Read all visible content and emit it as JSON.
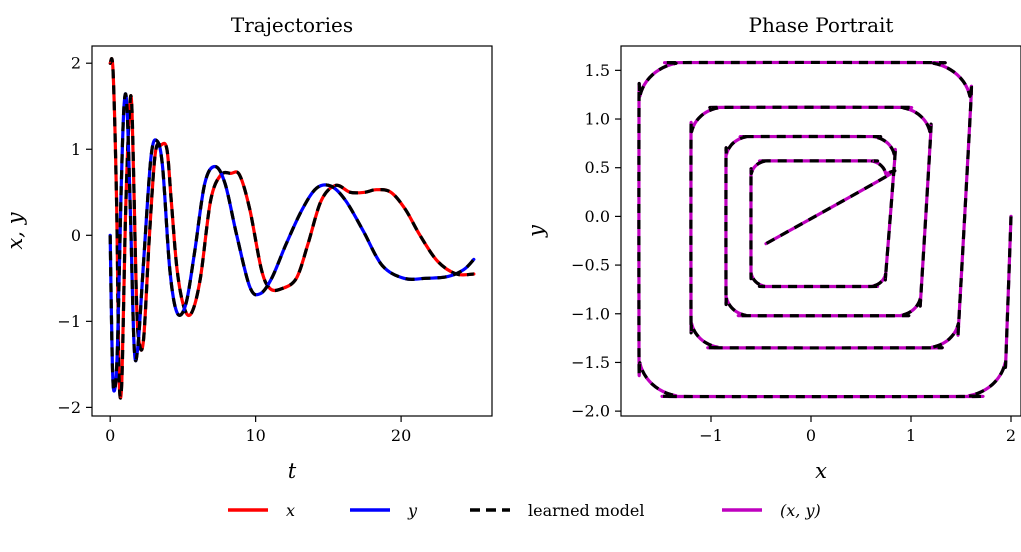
{
  "chart_data": [
    {
      "type": "line",
      "title": "Trajectories",
      "xlabel": "t",
      "ylabel": "x, y",
      "xlim": [
        -1.25,
        26.25
      ],
      "ylim": [
        -2.1,
        2.2
      ],
      "xticks": [
        0,
        10,
        20
      ],
      "yticks": [
        -2,
        -1,
        0,
        1,
        2
      ],
      "xtick_labels": [
        "0",
        "10",
        "20"
      ],
      "ytick_labels": [
        "−2",
        "−1",
        "0",
        "1",
        "2"
      ],
      "grid": false,
      "series": [
        {
          "name": "x",
          "color": "#ff0000",
          "points": [
            [
              0,
              2.0
            ],
            [
              0.2,
              1.9
            ],
            [
              0.45,
              0.3
            ],
            [
              0.6,
              -1.6
            ],
            [
              0.8,
              -1.7
            ],
            [
              1.05,
              0.2
            ],
            [
              1.3,
              1.35
            ],
            [
              1.5,
              1.45
            ],
            [
              1.8,
              -0.7
            ],
            [
              2.0,
              -1.25
            ],
            [
              2.3,
              -1.2
            ],
            [
              2.7,
              0.0
            ],
            [
              3.1,
              0.95
            ],
            [
              3.5,
              1.05
            ],
            [
              3.9,
              1.0
            ],
            [
              4.2,
              0.4
            ],
            [
              4.6,
              -0.4
            ],
            [
              5.1,
              -0.85
            ],
            [
              5.6,
              -0.9
            ],
            [
              6.2,
              -0.5
            ],
            [
              6.9,
              0.4
            ],
            [
              7.6,
              0.7
            ],
            [
              8.3,
              0.72
            ],
            [
              8.9,
              0.7
            ],
            [
              9.6,
              0.3
            ],
            [
              10.4,
              -0.4
            ],
            [
              11.0,
              -0.62
            ],
            [
              11.8,
              -0.62
            ],
            [
              12.8,
              -0.5
            ],
            [
              13.6,
              -0.1
            ],
            [
              14.5,
              0.4
            ],
            [
              15.5,
              0.58
            ],
            [
              16.5,
              0.5
            ],
            [
              17.5,
              0.5
            ],
            [
              18.3,
              0.53
            ],
            [
              19.3,
              0.5
            ],
            [
              20.3,
              0.3
            ],
            [
              21.3,
              0.0
            ],
            [
              22.5,
              -0.3
            ],
            [
              23.8,
              -0.45
            ],
            [
              25.0,
              -0.45
            ]
          ]
        },
        {
          "name": "y",
          "color": "#0000ff",
          "points": [
            [
              0,
              0.0
            ],
            [
              0.15,
              -1.5
            ],
            [
              0.3,
              -1.8
            ],
            [
              0.5,
              -1.3
            ],
            [
              0.75,
              0.5
            ],
            [
              0.95,
              1.5
            ],
            [
              1.15,
              1.5
            ],
            [
              1.4,
              0.2
            ],
            [
              1.65,
              -1.3
            ],
            [
              1.9,
              -1.3
            ],
            [
              2.3,
              -0.3
            ],
            [
              2.8,
              0.9
            ],
            [
              3.2,
              1.1
            ],
            [
              3.6,
              0.8
            ],
            [
              4.1,
              -0.4
            ],
            [
              4.6,
              -0.9
            ],
            [
              5.2,
              -0.8
            ],
            [
              5.8,
              -0.2
            ],
            [
              6.5,
              0.6
            ],
            [
              7.2,
              0.8
            ],
            [
              7.9,
              0.6
            ],
            [
              8.7,
              0.0
            ],
            [
              9.6,
              -0.6
            ],
            [
              10.3,
              -0.68
            ],
            [
              11.1,
              -0.5
            ],
            [
              12.1,
              -0.1
            ],
            [
              13.2,
              0.3
            ],
            [
              14.2,
              0.55
            ],
            [
              15.2,
              0.57
            ],
            [
              16.2,
              0.4
            ],
            [
              17.4,
              0.05
            ],
            [
              18.7,
              -0.35
            ],
            [
              20.2,
              -0.5
            ],
            [
              21.7,
              -0.5
            ],
            [
              23.2,
              -0.48
            ],
            [
              24.3,
              -0.4
            ],
            [
              25.0,
              -0.28
            ]
          ]
        },
        {
          "name": "learned model",
          "color": "#000000",
          "dashed": true
        }
      ]
    },
    {
      "type": "line",
      "title": "Phase Portrait",
      "xlabel": "x",
      "ylabel": "y",
      "xlim": [
        -1.9,
        2.1
      ],
      "ylim": [
        -2.05,
        1.75
      ],
      "xticks": [
        -1,
        0,
        1,
        2
      ],
      "yticks": [
        -2.0,
        -1.5,
        -1.0,
        -0.5,
        0.0,
        0.5,
        1.0,
        1.5
      ],
      "xtick_labels": [
        "−1",
        "0",
        "1",
        "2"
      ],
      "ytick_labels": [
        "−2.0",
        "−1.5",
        "−1.0",
        "−0.5",
        "0.0",
        "0.5",
        "1.0",
        "1.5"
      ],
      "grid": false,
      "series": [
        {
          "name": "(x, y)",
          "color": "#bf00bf",
          "spiral": {
            "start": [
              2.0,
              0.0
            ],
            "end": [
              -0.45,
              -0.28
            ],
            "rings": [
              {
                "xmin": -1.72,
                "xmax": 1.95,
                "ymin": -1.85,
                "ymax": 1.58
              },
              {
                "xmin": -1.2,
                "xmax": 1.48,
                "ymin": -1.35,
                "ymax": 1.12
              },
              {
                "xmin": -0.85,
                "xmax": 1.1,
                "ymin": -1.02,
                "ymax": 0.82
              },
              {
                "xmin": -0.6,
                "xmax": 0.75,
                "ymin": -0.72,
                "ymax": 0.57
              }
            ]
          }
        },
        {
          "name": "learned model",
          "color": "#000000",
          "dashed": true
        }
      ]
    }
  ],
  "legend": {
    "placement": "bottom-center",
    "entries": [
      {
        "label": "x",
        "color": "#ff0000",
        "style": "solid",
        "math": true
      },
      {
        "label": "y",
        "color": "#0000ff",
        "style": "solid",
        "math": true
      },
      {
        "label": "learned model",
        "color": "#000000",
        "style": "dashed",
        "math": false
      },
      {
        "label": "(x, y)",
        "color": "#bf00bf",
        "style": "solid",
        "math": true
      }
    ]
  }
}
